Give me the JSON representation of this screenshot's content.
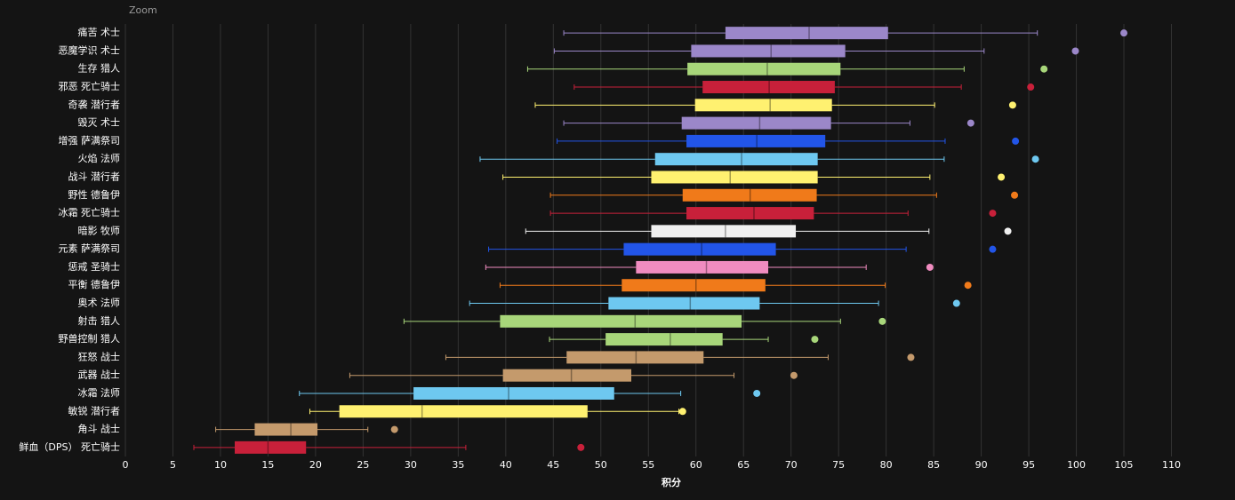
{
  "chart_data": {
    "type": "boxplot",
    "zoom_label": "Zoom",
    "xlabel": "积分",
    "xlim": [
      0,
      115
    ],
    "xticks": [
      0,
      5,
      10,
      15,
      20,
      25,
      30,
      35,
      40,
      45,
      50,
      55,
      60,
      65,
      70,
      75,
      80,
      85,
      90,
      95,
      100,
      105,
      110
    ],
    "grid": true,
    "boxes": [
      {
        "name": "痛苦 术士",
        "color": "#9b87c9",
        "low": 46.1,
        "q1": 63.1,
        "median": 71.9,
        "q3": 80.2,
        "high": 95.9,
        "outlier": 105.0
      },
      {
        "name": "恶魔学识 术士",
        "color": "#9b87c9",
        "low": 45.1,
        "q1": 59.5,
        "median": 67.9,
        "q3": 75.7,
        "high": 90.3,
        "outlier": 99.9
      },
      {
        "name": "生存 猎人",
        "color": "#a8d67a",
        "low": 42.3,
        "q1": 59.1,
        "median": 67.5,
        "q3": 75.2,
        "high": 88.2,
        "outlier": 96.6
      },
      {
        "name": "邪恶 死亡骑士",
        "color": "#c8203a",
        "low": 47.2,
        "q1": 60.7,
        "median": 67.7,
        "q3": 74.6,
        "high": 87.9,
        "outlier": 95.2
      },
      {
        "name": "奇袭 潜行者",
        "color": "#fff170",
        "low": 43.1,
        "q1": 59.9,
        "median": 67.8,
        "q3": 74.3,
        "high": 85.1,
        "outlier": 93.3
      },
      {
        "name": "毁灭 术士",
        "color": "#9b87c9",
        "low": 46.1,
        "q1": 58.5,
        "median": 66.7,
        "q3": 74.2,
        "high": 82.5,
        "outlier": 88.9
      },
      {
        "name": "增强 萨满祭司",
        "color": "#2255e8",
        "low": 45.4,
        "q1": 59.0,
        "median": 66.4,
        "q3": 73.6,
        "high": 86.2,
        "outlier": 93.6
      },
      {
        "name": "火焰 法师",
        "color": "#6ec8f0",
        "low": 37.3,
        "q1": 55.7,
        "median": 64.8,
        "q3": 72.8,
        "high": 86.1,
        "outlier": 95.7
      },
      {
        "name": "战斗 潜行者",
        "color": "#fff170",
        "low": 39.7,
        "q1": 55.3,
        "median": 63.6,
        "q3": 72.8,
        "high": 84.6,
        "outlier": 92.1
      },
      {
        "name": "野性 德鲁伊",
        "color": "#f07a1a",
        "low": 44.7,
        "q1": 58.6,
        "median": 65.7,
        "q3": 72.7,
        "high": 85.3,
        "outlier": 93.5
      },
      {
        "name": "冰霜 死亡骑士",
        "color": "#c8203a",
        "low": 44.7,
        "q1": 59.0,
        "median": 66.1,
        "q3": 72.4,
        "high": 82.3,
        "outlier": 91.2
      },
      {
        "name": "暗影 牧师",
        "color": "#f0f0f0",
        "low": 42.1,
        "q1": 55.3,
        "median": 63.1,
        "q3": 70.5,
        "high": 84.5,
        "outlier": 92.8
      },
      {
        "name": "元素 萨满祭司",
        "color": "#2255e8",
        "low": 38.2,
        "q1": 52.4,
        "median": 60.6,
        "q3": 68.4,
        "high": 82.1,
        "outlier": 91.2
      },
      {
        "name": "惩戒 圣骑士",
        "color": "#f08cc0",
        "low": 37.9,
        "q1": 53.7,
        "median": 61.1,
        "q3": 67.6,
        "high": 77.9,
        "outlier": 84.6
      },
      {
        "name": "平衡 德鲁伊",
        "color": "#f07a1a",
        "low": 39.4,
        "q1": 52.2,
        "median": 60.0,
        "q3": 67.3,
        "high": 79.9,
        "outlier": 88.6
      },
      {
        "name": "奥术 法师",
        "color": "#6ec8f0",
        "low": 36.2,
        "q1": 50.8,
        "median": 59.4,
        "q3": 66.7,
        "high": 79.2,
        "outlier": 87.4
      },
      {
        "name": "射击 猎人",
        "color": "#a8d67a",
        "low": 29.3,
        "q1": 39.4,
        "median": 53.6,
        "q3": 64.8,
        "high": 75.2,
        "outlier": 79.6
      },
      {
        "name": "野兽控制 猎人",
        "color": "#a8d67a",
        "low": 44.6,
        "q1": 50.5,
        "median": 57.3,
        "q3": 62.8,
        "high": 67.6,
        "outlier": 72.5
      },
      {
        "name": "狂怒 战士",
        "color": "#c49a6c",
        "low": 33.7,
        "q1": 46.4,
        "median": 53.7,
        "q3": 60.8,
        "high": 73.9,
        "outlier": 82.6
      },
      {
        "name": "武器 战士",
        "color": "#c49a6c",
        "low": 23.6,
        "q1": 39.7,
        "median": 46.9,
        "q3": 53.2,
        "high": 64.0,
        "outlier": 70.3
      },
      {
        "name": "冰霜 法师",
        "color": "#6ec8f0",
        "low": 18.3,
        "q1": 30.3,
        "median": 40.3,
        "q3": 51.4,
        "high": 58.4,
        "outlier": 66.4
      },
      {
        "name": "敏锐 潜行者",
        "color": "#fff170",
        "low": 19.4,
        "q1": 22.5,
        "median": 31.2,
        "q3": 48.6,
        "high": 58.2,
        "outlier": 58.6
      },
      {
        "name": "角斗 战士",
        "color": "#c49a6c",
        "low": 9.5,
        "q1": 13.6,
        "median": 17.4,
        "q3": 20.2,
        "high": 25.5,
        "outlier": 28.3
      },
      {
        "name": "鲜血（DPS） 死亡骑士",
        "color": "#c8203a",
        "low": 7.2,
        "q1": 11.5,
        "median": 15.0,
        "q3": 19.0,
        "high": 35.8,
        "outlier": 47.9
      }
    ]
  }
}
